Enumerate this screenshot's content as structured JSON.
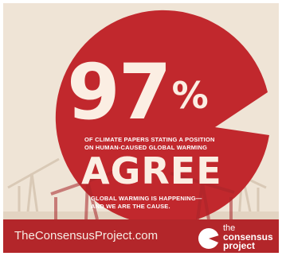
{
  "poster": {
    "percentage": "97",
    "percent_sign": "%",
    "description_line1": "OF CLIMATE PAPERS STATING A POSITION",
    "description_line2": "ON HUMAN-CAUSED GLOBAL WARMING",
    "agree_word": "AGREE",
    "tagline_line1": "GLOBAL WARMING IS HAPPENING—",
    "tagline_line2": "AND WE ARE THE CAUSE.",
    "website": "TheConsensusProject.com",
    "logo_line1": "the",
    "logo_line2": "consensus",
    "logo_line3": "project"
  },
  "colors": {
    "circle_red": "#c1282d",
    "background": "#efe4d6",
    "footer": "#b3262a",
    "text_light": "#fbeee3"
  },
  "icons": {
    "background_scene": "oil-pumpjack-silhouettes",
    "logo_mark": "consensus-project-logo-icon"
  }
}
